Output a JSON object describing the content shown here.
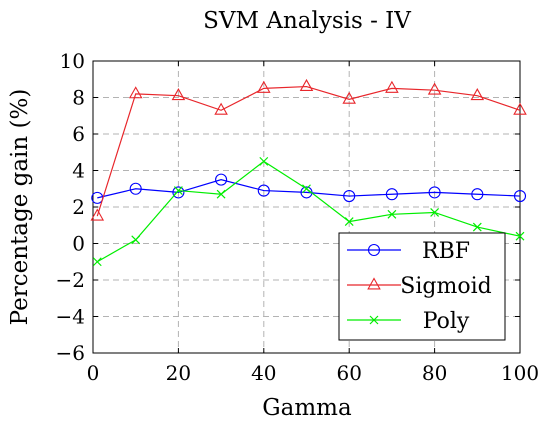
{
  "chart_data": {
    "type": "line",
    "title": "SVM Analysis - IV",
    "xlabel": "Gamma",
    "ylabel": "Percentage gain (%)",
    "xlim": [
      0,
      100
    ],
    "ylim": [
      -6,
      10
    ],
    "xticks": [
      0,
      20,
      40,
      60,
      80,
      100
    ],
    "yticks": [
      -6,
      -4,
      -2,
      0,
      2,
      4,
      6,
      8,
      10
    ],
    "grid": true,
    "legend_position": "bottom-right",
    "x": [
      1,
      10,
      20,
      30,
      40,
      50,
      60,
      70,
      80,
      90,
      100
    ],
    "series": [
      {
        "name": "RBF",
        "color": "#0000ff",
        "marker": "circle",
        "values": [
          2.5,
          3.0,
          2.8,
          3.5,
          2.9,
          2.8,
          2.6,
          2.7,
          2.8,
          2.7,
          2.6
        ]
      },
      {
        "name": "Sigmoid",
        "color": "#e8262b",
        "marker": "triangle",
        "values": [
          1.5,
          8.2,
          8.1,
          7.3,
          8.5,
          8.6,
          7.9,
          8.5,
          8.4,
          8.1,
          7.3
        ]
      },
      {
        "name": "Poly",
        "color": "#00ee00",
        "marker": "x",
        "values": [
          -1.0,
          0.2,
          2.9,
          2.7,
          4.5,
          3.0,
          1.2,
          1.6,
          1.7,
          0.9,
          0.4
        ]
      }
    ]
  }
}
